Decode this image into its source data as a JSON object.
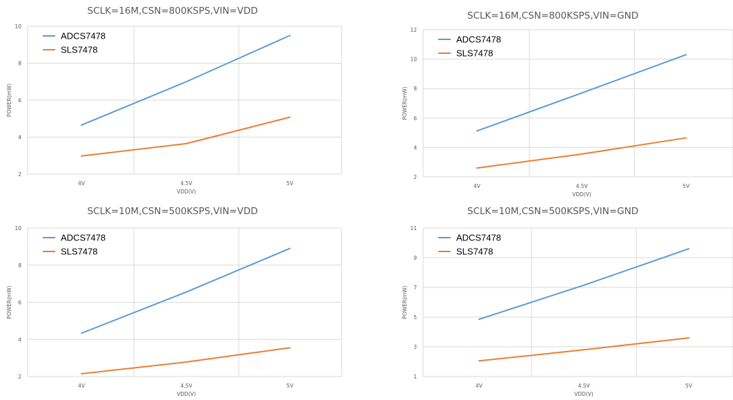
{
  "colors": {
    "adcs": "#5b9bd5",
    "sls": "#ed7d31",
    "grid": "#d9d9d9"
  },
  "chart_data": [
    {
      "type": "line",
      "title": "SCLK=16M,CSN=800KSPS,VIN=VDD",
      "xlabel": "VDD(V)",
      "ylabel": "POWER(mW)",
      "categories": [
        "4V",
        "4.5V",
        "5V"
      ],
      "ylim": [
        2,
        10
      ],
      "yticks": [
        2,
        4,
        6,
        8,
        10
      ],
      "grid": true,
      "legend": "top-left",
      "series": [
        {
          "name": "ADCS7478",
          "values": [
            4.65,
            7.0,
            9.5
          ]
        },
        {
          "name": "SLS7478",
          "values": [
            2.98,
            3.65,
            5.08
          ]
        }
      ]
    },
    {
      "type": "line",
      "title": "SCLK=16M,CSN=800KSPS,VIN=GND",
      "xlabel": "VDD(V)",
      "ylabel": "POWER(mW)",
      "categories": [
        "4V",
        "4.5V",
        "5V"
      ],
      "ylim": [
        2,
        12
      ],
      "yticks": [
        2,
        4,
        6,
        8,
        10,
        12
      ],
      "grid": true,
      "legend": "top-left",
      "series": [
        {
          "name": "ADCS7478",
          "values": [
            5.12,
            7.7,
            10.3
          ]
        },
        {
          "name": "SLS7478",
          "values": [
            2.6,
            3.55,
            4.65
          ]
        }
      ]
    },
    {
      "type": "line",
      "title": "SCLK=10M,CSN=500KSPS,VIN=VDD",
      "xlabel": "VDD(V)",
      "ylabel": "POWER(mW)",
      "categories": [
        "4V",
        "4.5V",
        "5V"
      ],
      "ylim": [
        2,
        10
      ],
      "yticks": [
        2,
        4,
        6,
        8,
        10
      ],
      "grid": true,
      "legend": "top-left",
      "series": [
        {
          "name": "ADCS7478",
          "values": [
            4.33,
            6.55,
            8.9
          ]
        },
        {
          "name": "SLS7478",
          "values": [
            2.15,
            2.78,
            3.55
          ]
        }
      ]
    },
    {
      "type": "line",
      "title": "SCLK=10M,CSN=500KSPS,VIN=GND",
      "xlabel": "VDD(V)",
      "ylabel": "POWER(mW)",
      "categories": [
        "4V",
        "4.5V",
        "5V"
      ],
      "ylim": [
        1,
        11
      ],
      "yticks": [
        1,
        3,
        5,
        7,
        9,
        11
      ],
      "grid": true,
      "legend": "top-left",
      "series": [
        {
          "name": "ADCS7478",
          "values": [
            4.85,
            7.15,
            9.6
          ]
        },
        {
          "name": "SLS7478",
          "values": [
            2.05,
            2.8,
            3.6
          ]
        }
      ]
    }
  ]
}
